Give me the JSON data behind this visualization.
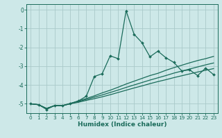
{
  "xlabel": "Humidex (Indice chaleur)",
  "ylabel": "",
  "xlim": [
    -0.5,
    23.5
  ],
  "ylim": [
    -5.5,
    0.3
  ],
  "yticks": [
    0,
    -1,
    -2,
    -3,
    -4,
    -5
  ],
  "xticks": [
    0,
    1,
    2,
    3,
    4,
    5,
    6,
    7,
    8,
    9,
    10,
    11,
    12,
    13,
    14,
    15,
    16,
    17,
    18,
    19,
    20,
    21,
    22,
    23
  ],
  "background_color": "#cde8e8",
  "grid_color": "#aacaca",
  "line_color": "#1a6b5a",
  "series1_x": [
    0,
    1,
    2,
    3,
    4,
    5,
    6,
    7,
    8,
    9,
    10,
    11,
    12,
    13,
    14,
    15,
    16,
    17,
    18,
    19,
    20,
    21,
    22,
    23
  ],
  "series1_y": [
    -5.0,
    -5.05,
    -5.3,
    -5.1,
    -5.1,
    -5.0,
    -4.85,
    -4.6,
    -3.55,
    -3.4,
    -2.45,
    -2.6,
    -0.05,
    -1.3,
    -1.75,
    -2.5,
    -2.2,
    -2.55,
    -2.8,
    -3.25,
    -3.2,
    -3.5,
    -3.1,
    -3.45
  ],
  "series2_x": [
    0,
    1,
    2,
    3,
    4,
    5,
    6,
    7,
    8,
    9,
    10,
    11,
    12,
    13,
    14,
    15,
    16,
    17,
    18,
    19,
    20,
    21,
    22,
    23
  ],
  "series2_y": [
    -5.0,
    -5.05,
    -5.25,
    -5.1,
    -5.1,
    -4.98,
    -4.85,
    -4.72,
    -4.58,
    -4.42,
    -4.28,
    -4.12,
    -3.95,
    -3.8,
    -3.65,
    -3.5,
    -3.38,
    -3.22,
    -3.08,
    -2.95,
    -2.82,
    -2.7,
    -2.6,
    -2.48
  ],
  "series3_x": [
    0,
    1,
    2,
    3,
    4,
    5,
    6,
    7,
    8,
    9,
    10,
    11,
    12,
    13,
    14,
    15,
    16,
    17,
    18,
    19,
    20,
    21,
    22,
    23
  ],
  "series3_y": [
    -5.0,
    -5.05,
    -5.25,
    -5.1,
    -5.1,
    -4.98,
    -4.88,
    -4.77,
    -4.65,
    -4.53,
    -4.4,
    -4.27,
    -4.13,
    -4.0,
    -3.87,
    -3.74,
    -3.62,
    -3.5,
    -3.37,
    -3.26,
    -3.15,
    -3.04,
    -2.93,
    -2.83
  ],
  "series4_x": [
    0,
    1,
    2,
    3,
    4,
    5,
    6,
    7,
    8,
    9,
    10,
    11,
    12,
    13,
    14,
    15,
    16,
    17,
    18,
    19,
    20,
    21,
    22,
    23
  ],
  "series4_y": [
    -5.0,
    -5.05,
    -5.25,
    -5.1,
    -5.1,
    -5.0,
    -4.92,
    -4.82,
    -4.73,
    -4.63,
    -4.52,
    -4.4,
    -4.28,
    -4.16,
    -4.05,
    -3.93,
    -3.82,
    -3.72,
    -3.61,
    -3.51,
    -3.41,
    -3.31,
    -3.22,
    -3.13
  ]
}
